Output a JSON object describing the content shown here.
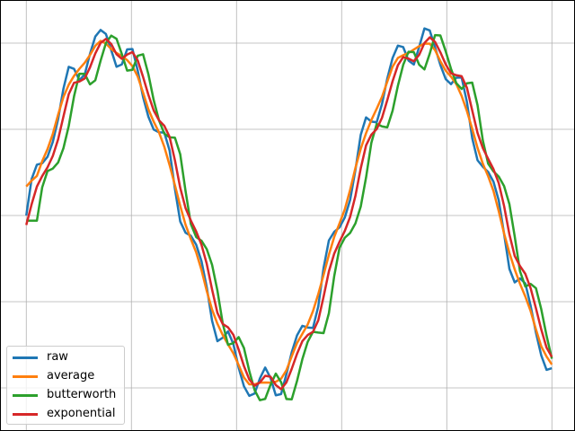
{
  "chart_data": {
    "type": "line",
    "title": "",
    "xlabel": "",
    "ylabel": "",
    "grid": true,
    "legend_position": "lower-left",
    "x_ticks": [
      0,
      1,
      2,
      3,
      4,
      5
    ],
    "y_ticks": [
      -1.0,
      -0.5,
      0.0,
      0.5,
      1.0
    ],
    "xlim": [
      -0.25,
      5.22
    ],
    "ylim": [
      -1.25,
      1.25
    ],
    "x_tick_labels_visible": false,
    "y_tick_labels_visible": false,
    "x_range": [
      0,
      5
    ],
    "n_points": 100,
    "series": [
      {
        "name": "raw",
        "color": "#1f77b4"
      },
      {
        "name": "average",
        "color": "#ff7f0e"
      },
      {
        "name": "butterworth",
        "color": "#2ca02c"
      },
      {
        "name": "exponential",
        "color": "#d62728"
      }
    ]
  }
}
